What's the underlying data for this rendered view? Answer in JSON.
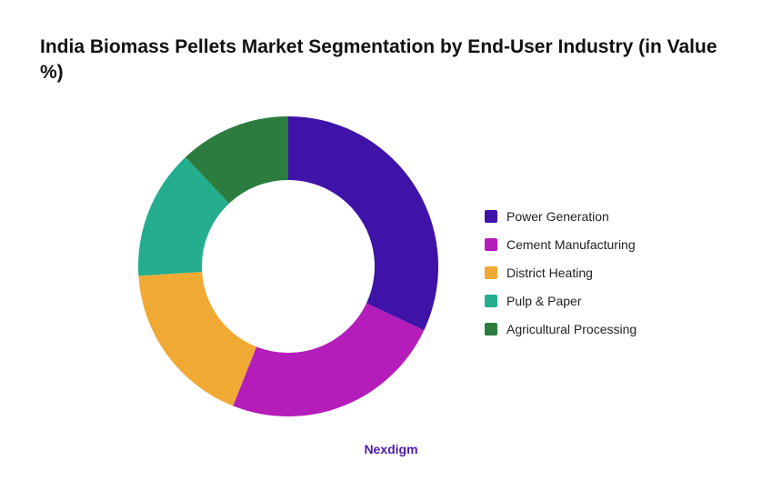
{
  "chart_data": {
    "type": "pie",
    "title": "India Biomass Pellets Market Segmentation by End-User Industry (in Value %)",
    "categories": [
      "Power Generation",
      "Cement Manufacturing",
      "District Heating",
      "Pulp & Paper",
      "Agricultural Processing"
    ],
    "values": [
      32,
      24,
      18,
      14,
      12
    ],
    "colors": [
      "#3f12a8",
      "#b41dba",
      "#f0a933",
      "#24ae8d",
      "#2b7c3e"
    ],
    "donut": true,
    "legend_position": "right"
  },
  "footer": {
    "brand": "Nexdigm"
  }
}
